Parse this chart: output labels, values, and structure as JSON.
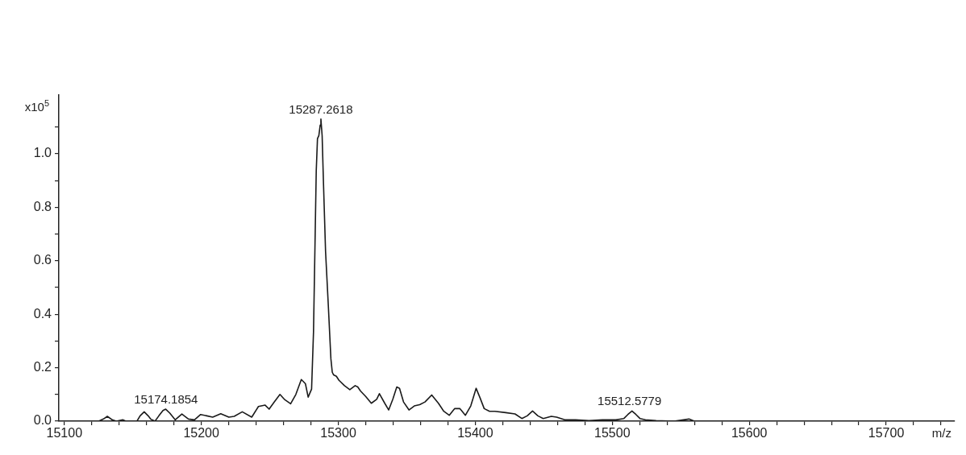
{
  "chart_data": {
    "type": "line",
    "color": "#1a1a1a",
    "marker": "none",
    "line_style": "solid",
    "grid": false,
    "legend": false,
    "xlabel": "m/z",
    "ylabel": "x10$^{5}$",
    "xlim": [
      15096,
      15750
    ],
    "ylim": [
      0,
      1.22
    ],
    "xticks": [
      15100,
      {
        "value": 15120,
        "label": null
      },
      {
        "value": 15140,
        "label": null
      },
      {
        "value": 15160,
        "label": null
      },
      {
        "value": 15180,
        "label": null
      },
      15200,
      {
        "value": 15220,
        "label": null
      },
      {
        "value": 15240,
        "label": null
      },
      {
        "value": 15260,
        "label": null
      },
      {
        "value": 15280,
        "label": null
      },
      15300,
      {
        "value": 15320,
        "label": null
      },
      {
        "value": 15340,
        "label": null
      },
      {
        "value": 15360,
        "label": null
      },
      {
        "value": 15380,
        "label": null
      },
      15400,
      {
        "value": 15420,
        "label": null
      },
      {
        "value": 15440,
        "label": null
      },
      {
        "value": 15460,
        "label": null
      },
      {
        "value": 15480,
        "label": null
      },
      15500,
      {
        "value": 15520,
        "label": null
      },
      {
        "value": 15540,
        "label": null
      },
      {
        "value": 15560,
        "label": null
      },
      {
        "value": 15580,
        "label": null
      },
      15600,
      {
        "value": 15620,
        "label": null
      },
      {
        "value": 15640,
        "label": null
      },
      {
        "value": 15660,
        "label": null
      },
      {
        "value": 15680,
        "label": null
      },
      15700,
      {
        "value": 15720,
        "label": null
      },
      {
        "value": 15740,
        "label": null
      }
    ],
    "yticks": [
      {
        "value": 0,
        "label": "0.0"
      },
      {
        "value": 0.1,
        "label": null
      },
      0.2,
      {
        "value": 0.3,
        "label": null
      },
      0.4,
      {
        "value": 0.5,
        "label": null
      },
      0.6,
      {
        "value": 0.7,
        "label": null
      },
      0.8,
      {
        "value": 0.9,
        "label": null
      },
      {
        "value": 1,
        "label": "1.0"
      },
      {
        "value": 1.1,
        "label": null
      }
    ],
    "x": [
      15096,
      15125,
      15128.5,
      15131.4,
      15135,
      15138,
      15142.6,
      15145,
      15153,
      15155.3,
      15158.3,
      15161.2,
      15163,
      15166.2,
      15169,
      15172,
      15174,
      15177,
      15180.9,
      15185.8,
      15190.6,
      15195,
      15199.5,
      15204,
      15208.3,
      15214.2,
      15220.1,
      15224,
      15229.9,
      15236.8,
      15241.7,
      15246.6,
      15249.5,
      15253,
      15257.4,
      15261,
      15265.2,
      15269,
      15273,
      15276,
      15278,
      15280.5,
      15281.9,
      15282.9,
      15283.9,
      15284.8,
      15285.8,
      15286.8,
      15287.3,
      15288.2,
      15289.2,
      15290.7,
      15292.7,
      15294.6,
      15295.6,
      15296.6,
      15298.6,
      15300.5,
      15304.5,
      15308.4,
      15312.3,
      15314.2,
      15316.2,
      15320.1,
      15324.1,
      15328,
      15330,
      15333.9,
      15336.8,
      15339.8,
      15342.7,
      15344.7,
      15347.6,
      15351.6,
      15355.5,
      15359.4,
      15363.3,
      15368.2,
      15373.1,
      15377,
      15381,
      15384.9,
      15388.8,
      15392.8,
      15396.7,
      15400.6,
      15403.5,
      15406.5,
      15410.4,
      15414.3,
      15422.2,
      15429,
      15434,
      15437.9,
      15441.8,
      15445.7,
      15449.6,
      15455.5,
      15459.4,
      15465.3,
      15473.2,
      15483,
      15492.8,
      15502.6,
      15508.5,
      15511.4,
      15514.4,
      15517.3,
      15520.2,
      15524.2,
      15532,
      15545,
      15552,
      15556,
      15560,
      15600,
      15700,
      15750
    ],
    "values": [
      0,
      0,
      0.008,
      0.018,
      0.005,
      0,
      0.005,
      0,
      0,
      0.02,
      0.035,
      0.02,
      0.008,
      0,
      0.02,
      0.04,
      0.045,
      0.03,
      0.005,
      0.027,
      0.008,
      0.005,
      0.025,
      0.02,
      0.015,
      0.028,
      0.015,
      0.018,
      0.035,
      0.015,
      0.055,
      0.06,
      0.045,
      0.07,
      0.1,
      0.08,
      0.065,
      0.1,
      0.156,
      0.14,
      0.09,
      0.12,
      0.334,
      0.635,
      0.937,
      1.057,
      1.068,
      1.108,
      1.13,
      1.068,
      0.887,
      0.635,
      0.434,
      0.233,
      0.183,
      0.173,
      0.168,
      0.153,
      0.133,
      0.118,
      0.133,
      0.128,
      0.113,
      0.092,
      0.067,
      0.082,
      0.103,
      0.067,
      0.042,
      0.082,
      0.128,
      0.123,
      0.072,
      0.042,
      0.057,
      0.062,
      0.072,
      0.098,
      0.067,
      0.037,
      0.022,
      0.047,
      0.047,
      0.022,
      0.057,
      0.123,
      0.087,
      0.047,
      0.037,
      0.037,
      0.032,
      0.027,
      0.01,
      0.02,
      0.038,
      0.02,
      0.01,
      0.018,
      0.015,
      0.005,
      0.005,
      0.002,
      0.005,
      0.005,
      0.01,
      0.025,
      0.038,
      0.025,
      0.01,
      0.005,
      0.002,
      0,
      0.005,
      0.008,
      0,
      0,
      0,
      0
    ],
    "annotations": [
      {
        "text": "15174.1854",
        "x": 15174.1854,
        "y": 0.045
      },
      {
        "text": "15287.2618",
        "x": 15287.2618,
        "y": 1.13
      },
      {
        "text": "15512.5779",
        "x": 15512.5779,
        "y": 0.038
      }
    ]
  }
}
